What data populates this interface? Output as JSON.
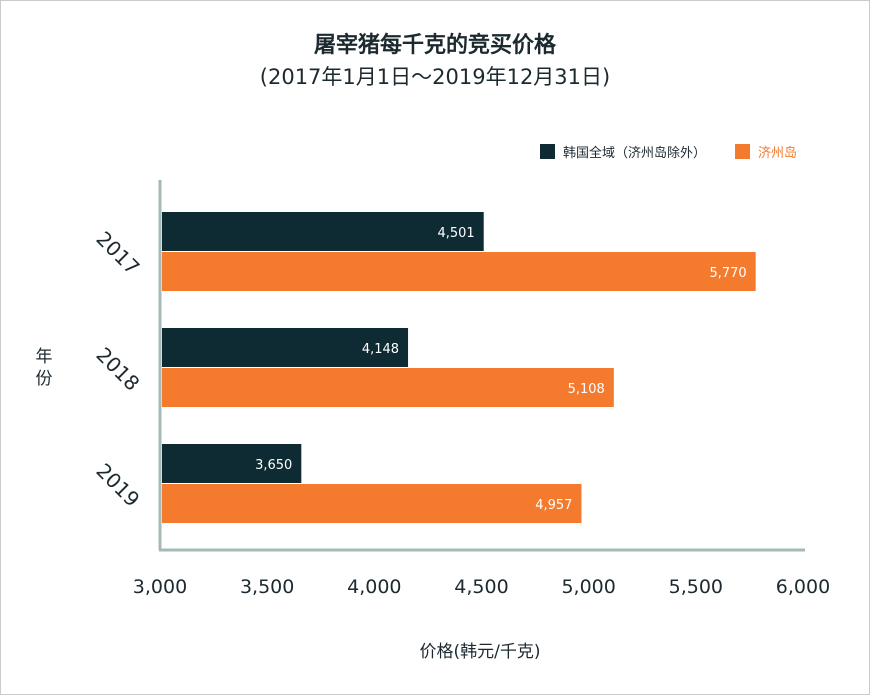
{
  "chart_data": {
    "type": "bar",
    "orientation": "horizontal",
    "title": "屠宰猪每千克的竞买价格",
    "subtitle": "(2017年1月1日～2019年12月31日)",
    "xlabel": "价格(韩元/千克)",
    "ylabel": "年份",
    "xlim": [
      3000,
      6000
    ],
    "x_ticks": [
      "3,000",
      "3,500",
      "4,000",
      "4,500",
      "5,000",
      "5,500",
      "6,000"
    ],
    "categories": [
      "2017",
      "2018",
      "2019"
    ],
    "series": [
      {
        "name": "韩国全域（济州岛除外）",
        "color": "#0e2a33",
        "values": [
          4501,
          4148,
          3650
        ],
        "labels": [
          "4,501",
          "4,148",
          "3,650"
        ]
      },
      {
        "name": "济州岛",
        "color": "#f47a2e",
        "values": [
          5770,
          5108,
          4957
        ],
        "labels": [
          "5,770",
          "5,108",
          "4,957"
        ]
      }
    ],
    "legend_position": "top-right",
    "grid": false,
    "axis_color": "#a6b8b7"
  }
}
